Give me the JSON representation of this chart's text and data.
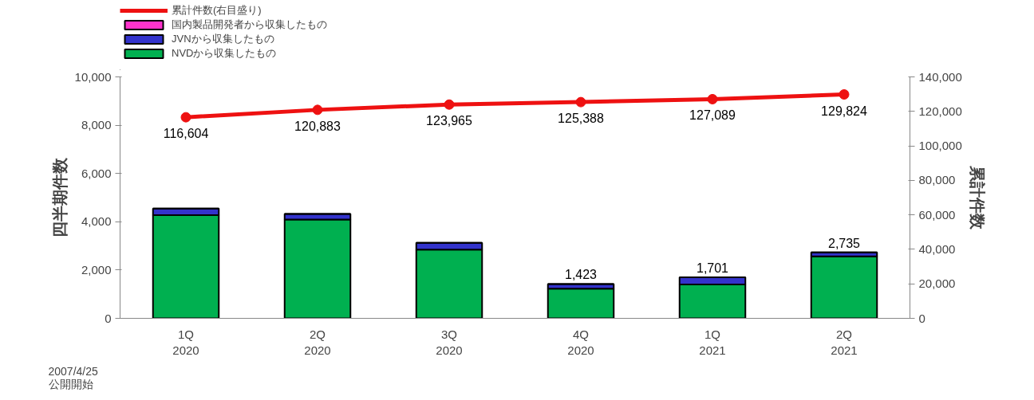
{
  "chart_data": {
    "type": "bar",
    "stacked": true,
    "categories": [
      "1Q\n2020",
      "2Q\n2020",
      "3Q\n2020",
      "4Q\n2020",
      "1Q\n2021",
      "2Q\n2021"
    ],
    "series": [
      {
        "name": "NVDから収集したもの",
        "color": "#00b050",
        "values": [
          4270,
          4090,
          2850,
          1230,
          1400,
          2570
        ]
      },
      {
        "name": "JVNから収集したもの",
        "color": "#3333cc",
        "values": [
          275,
          235,
          275,
          193,
          301,
          165
        ]
      },
      {
        "name": "国内製品開発者から収集したもの",
        "color": "#ff33cc",
        "values": [
          null,
          null,
          null,
          null,
          null,
          null
        ]
      },
      {
        "name": "累計件数(右目盛り)",
        "type": "line",
        "axis": "y2",
        "color": "#ee1111",
        "marker": "circle",
        "values": [
          116604,
          120883,
          123965,
          125388,
          127089,
          129824
        ],
        "value_labels": [
          "116,604",
          "120,883",
          "123,965",
          "125,388",
          "127,089",
          "129,824"
        ]
      }
    ],
    "totals": [
      null,
      null,
      null,
      "1,423",
      "1,701",
      "2,735"
    ],
    "ylabel": "四半期件数",
    "y2label": "累計件数",
    "ylim": [
      0,
      10000
    ],
    "yticks": [
      {
        "value": 0,
        "label": "0"
      },
      {
        "value": 2000,
        "label": "2,000"
      },
      {
        "value": 4000,
        "label": "4,000"
      },
      {
        "value": 6000,
        "label": "6,000"
      },
      {
        "value": 8000,
        "label": "8,000"
      },
      {
        "value": 10000,
        "label": "10,000"
      }
    ],
    "y2lim": [
      0,
      140000
    ],
    "y2ticks": [
      {
        "value": 0,
        "label": "0"
      },
      {
        "value": 20000,
        "label": "20,000"
      },
      {
        "value": 40000,
        "label": "40,000"
      },
      {
        "value": 60000,
        "label": "60,000"
      },
      {
        "value": 80000,
        "label": "80,000"
      },
      {
        "value": 100000,
        "label": "100,000"
      },
      {
        "value": 120000,
        "label": "120,000"
      },
      {
        "value": 140000,
        "label": "140,000"
      }
    ],
    "grid": false,
    "legend": "top left",
    "annotations": [
      "2007/4/25\n公開開始"
    ]
  }
}
